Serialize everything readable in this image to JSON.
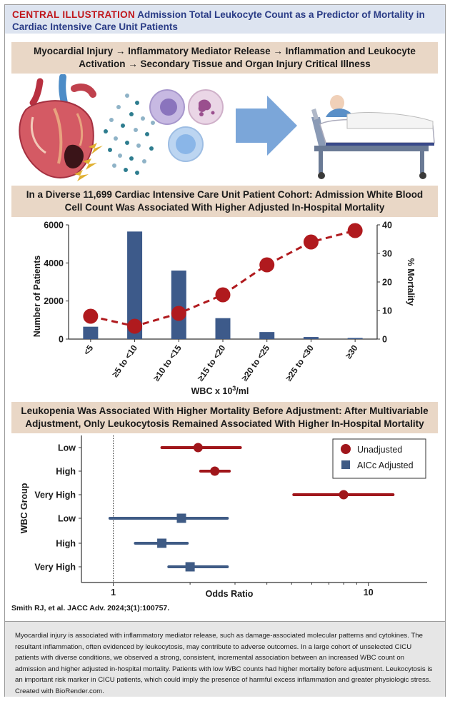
{
  "header": {
    "label": "CENTRAL ILLUSTRATION",
    "title": "Admission Total Leukocyte Count as a Predictor of Mortality in Cardiac Intensive Care Unit Patients"
  },
  "section1": {
    "text": "Myocardial Injury → Inflammatory Mediator Release → Inflammation and Leukocyte Activation → Secondary Tissue and Organ Injury Critical Illness"
  },
  "section2": {
    "text": "In a Diverse 11,699 Cardiac Intensive Care Unit Patient Cohort:  Admission White Blood Cell Count Was Associated With Higher Adjusted In-Hospital Mortality"
  },
  "section3": {
    "text": "Leukopenia Was Associated With Higher Mortality Before Adjustment: After Multivariable Adjustment, Only Leukocytosis Remained Associated With Higher In-Hospital Mortality"
  },
  "citation": "Smith RJ, et al. JACC Adv. 2024;3(1):100757.",
  "footer_text": "Myocardial injury is associated with inflammatory mediator release, such as damage-associated molecular patterns and cytokines. The resultant inflammation, often evidenced by leukocytosis, may contribute to adverse outcomes. In a large cohort of unselected CICU patients with diverse conditions, we observed a strong, consistent, incremental association between an increased WBC count on admission and higher adjusted in-hospital mortality. Patients with low WBC counts had higher mortality before adjustment. Leukocytosis is an important risk marker in CICU patients, which could imply the presence of harmful excess inflammation and greater physiologic stress. Created with BioRender.com.",
  "colors": {
    "bar": "#3d5a8a",
    "line": "#b01a1e",
    "unadjusted": "#a0161b",
    "adjusted": "#3f5b85"
  },
  "chart_data": [
    {
      "type": "bar",
      "subtype": "bar-with-line-secondary-axis",
      "categories": [
        "<5",
        "≥5 to <10",
        "≥10 to <15",
        "≥15 to <20",
        "≥20 to <25",
        "≥25 to <30",
        "≥30"
      ],
      "series": [
        {
          "name": "Number of Patients",
          "axis": "left",
          "type": "bar",
          "values": [
            650,
            5650,
            3600,
            1100,
            370,
            110,
            60
          ]
        },
        {
          "name": "% Mortality",
          "axis": "right",
          "type": "line",
          "values": [
            8,
            4.5,
            9,
            15.5,
            26,
            34,
            38
          ]
        }
      ],
      "xlabel_prefix": "WBC x 10",
      "xlabel_sup": "3",
      "xlabel_suffix": "/ml",
      "ylabel_left": "Number of Patients",
      "ylabel_right": "% Mortality",
      "ylim_left": [
        0,
        6000
      ],
      "ylim_right": [
        0,
        40
      ],
      "yticks_left": [
        "0",
        "2000",
        "4000",
        "6000"
      ],
      "yticks_right": [
        "0",
        "10",
        "20",
        "30",
        "40"
      ]
    },
    {
      "type": "scatter",
      "subtype": "forest-plot",
      "xscale": "log",
      "xlabel": "Odds Ratio",
      "ylabel": "WBC Group",
      "xlim": [
        0.75,
        17
      ],
      "xticks": [
        "1",
        "10"
      ],
      "reference_line": 1,
      "legend": [
        "Unadjusted",
        "AICc Adjusted"
      ],
      "rows": [
        {
          "label": "Low",
          "series": "Unadjusted",
          "estimate": 2.15,
          "ci": [
            1.55,
            3.15
          ]
        },
        {
          "label": "High",
          "series": "Unadjusted",
          "estimate": 2.5,
          "ci": [
            2.2,
            2.85
          ]
        },
        {
          "label": "Very High",
          "series": "Unadjusted",
          "estimate": 8.0,
          "ci": [
            5.1,
            12.5
          ]
        },
        {
          "label": "Low",
          "series": "AICc Adjusted",
          "estimate": 1.85,
          "ci": [
            0.97,
            2.8
          ]
        },
        {
          "label": "High",
          "series": "AICc Adjusted",
          "estimate": 1.55,
          "ci": [
            1.22,
            1.95
          ]
        },
        {
          "label": "Very High",
          "series": "AICc Adjusted",
          "estimate": 2.0,
          "ci": [
            1.65,
            2.8
          ]
        }
      ]
    }
  ]
}
